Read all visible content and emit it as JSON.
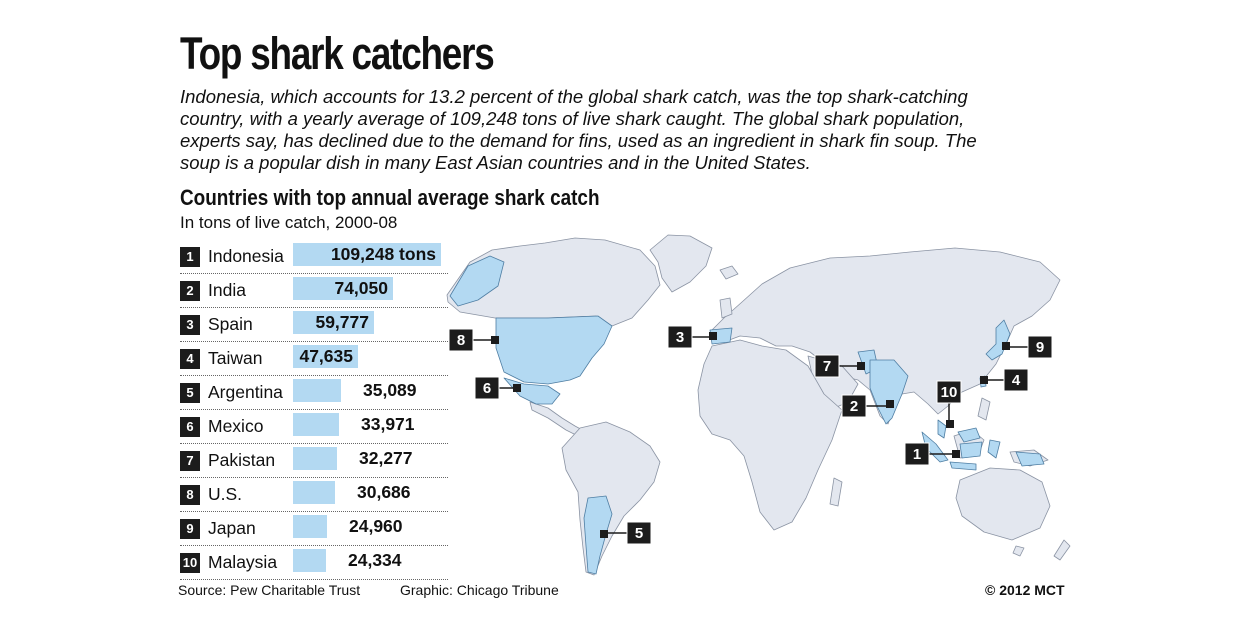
{
  "header": {
    "title": "Top shark catchers",
    "intro": "Indonesia, which accounts for 13.2 percent of the global shark catch, was the top shark-catching country, with a yearly average of 109,248 tons of live shark caught. The global shark population, experts say, has declined due to the demand for fins, used as an ingredient in shark fin soup. The soup is a popular dish in many East Asian countries and in the United States."
  },
  "chart_data": {
    "type": "bar",
    "title": "Countries with top annual average shark catch",
    "subtitle": "In tons of live catch, 2000-08",
    "ranks": [
      "1",
      "2",
      "3",
      "4",
      "5",
      "6",
      "7",
      "8",
      "9",
      "10"
    ],
    "categories": [
      "Indonesia",
      "India",
      "Spain",
      "Taiwan",
      "Argentina",
      "Mexico",
      "Pakistan",
      "U.S.",
      "Japan",
      "Malaysia"
    ],
    "values": [
      109248,
      74050,
      59777,
      47635,
      35089,
      33971,
      32277,
      30686,
      24960,
      24334
    ],
    "value_labels": [
      "109,248 tons",
      "74,050",
      "59,777",
      "47,635",
      "35,089",
      "33,971",
      "32,277",
      "30,686",
      "24,960",
      "24,334"
    ],
    "map_markers": [
      "1",
      "2",
      "3",
      "4",
      "5",
      "6",
      "7",
      "8",
      "9",
      "10"
    ],
    "highlight_color": "#b3d9f2",
    "land_color": "#e3e7ef",
    "ocean_color": "#ffffff",
    "marker_color": "#1c1c1c"
  },
  "footer": {
    "source": "Source: Pew Charitable Trust",
    "graphic": "Graphic: Chicago Tribune",
    "copyright": "© 2012 MCT"
  }
}
